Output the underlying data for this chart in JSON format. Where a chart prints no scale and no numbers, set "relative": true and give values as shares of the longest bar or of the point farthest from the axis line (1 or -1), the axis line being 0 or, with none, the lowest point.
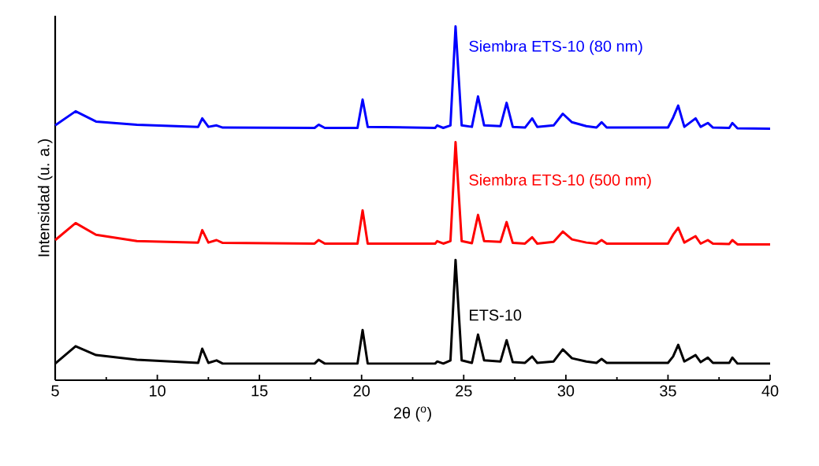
{
  "chart_data": {
    "type": "line",
    "relative": true,
    "xlabel": "2θ ($^{o}$)",
    "ylabel": "Intensidad (u. a.)",
    "xlim": [
      5,
      40
    ],
    "xticks": [
      5,
      10,
      15,
      20,
      25,
      30,
      35,
      40
    ],
    "x": [
      5,
      6,
      7,
      9,
      12,
      12.2,
      12.5,
      12.9,
      13.2,
      17.7,
      17.9,
      18.2,
      19.8,
      20.05,
      20.3,
      23.6,
      23.7,
      24.0,
      24.35,
      24.6,
      24.9,
      25.4,
      25.7,
      26.0,
      26.8,
      27.1,
      27.4,
      28.0,
      28.35,
      28.6,
      29.4,
      29.85,
      30.3,
      31.0,
      31.5,
      31.75,
      32.0,
      35.0,
      35.25,
      35.5,
      35.8,
      36.35,
      36.6,
      36.95,
      37.2,
      38.0,
      38.15,
      38.4,
      40
    ],
    "series": [
      {
        "name": "Siembra ETS-10 (80 nm)",
        "color": "#0000ff",
        "values": [
          0.72,
          0.76,
          0.731,
          0.722,
          0.716,
          0.74,
          0.716,
          0.72,
          0.714,
          0.713,
          0.722,
          0.713,
          0.713,
          0.793,
          0.716,
          0.713,
          0.72,
          0.713,
          0.72,
          1,
          0.72,
          0.716,
          0.802,
          0.72,
          0.718,
          0.784,
          0.716,
          0.714,
          0.74,
          0.716,
          0.72,
          0.753,
          0.729,
          0.718,
          0.714,
          0.729,
          0.714,
          0.714,
          0.742,
          0.776,
          0.716,
          0.74,
          0.716,
          0.727,
          0.714,
          0.713,
          0.727,
          0.712,
          0.711
        ]
      },
      {
        "name": "Siembra ETS-10 (500 nm)",
        "color": "#ff0000",
        "values": [
          0.396,
          0.444,
          0.411,
          0.393,
          0.389,
          0.424,
          0.389,
          0.396,
          0.388,
          0.386,
          0.396,
          0.386,
          0.386,
          0.48,
          0.386,
          0.386,
          0.393,
          0.386,
          0.393,
          0.673,
          0.393,
          0.387,
          0.467,
          0.393,
          0.391,
          0.447,
          0.388,
          0.386,
          0.404,
          0.386,
          0.391,
          0.42,
          0.398,
          0.389,
          0.386,
          0.396,
          0.386,
          0.386,
          0.411,
          0.431,
          0.389,
          0.407,
          0.386,
          0.396,
          0.386,
          0.385,
          0.396,
          0.384,
          0.384
        ]
      },
      {
        "name": "ETS-10",
        "color": "#000000",
        "values": [
          0.047,
          0.096,
          0.071,
          0.058,
          0.049,
          0.089,
          0.049,
          0.056,
          0.047,
          0.047,
          0.058,
          0.047,
          0.047,
          0.142,
          0.047,
          0.047,
          0.053,
          0.047,
          0.056,
          0.34,
          0.056,
          0.049,
          0.129,
          0.056,
          0.053,
          0.113,
          0.051,
          0.049,
          0.067,
          0.049,
          0.053,
          0.087,
          0.062,
          0.053,
          0.049,
          0.06,
          0.049,
          0.049,
          0.067,
          0.1,
          0.053,
          0.071,
          0.051,
          0.064,
          0.049,
          0.049,
          0.064,
          0.047,
          0.047
        ]
      }
    ]
  }
}
